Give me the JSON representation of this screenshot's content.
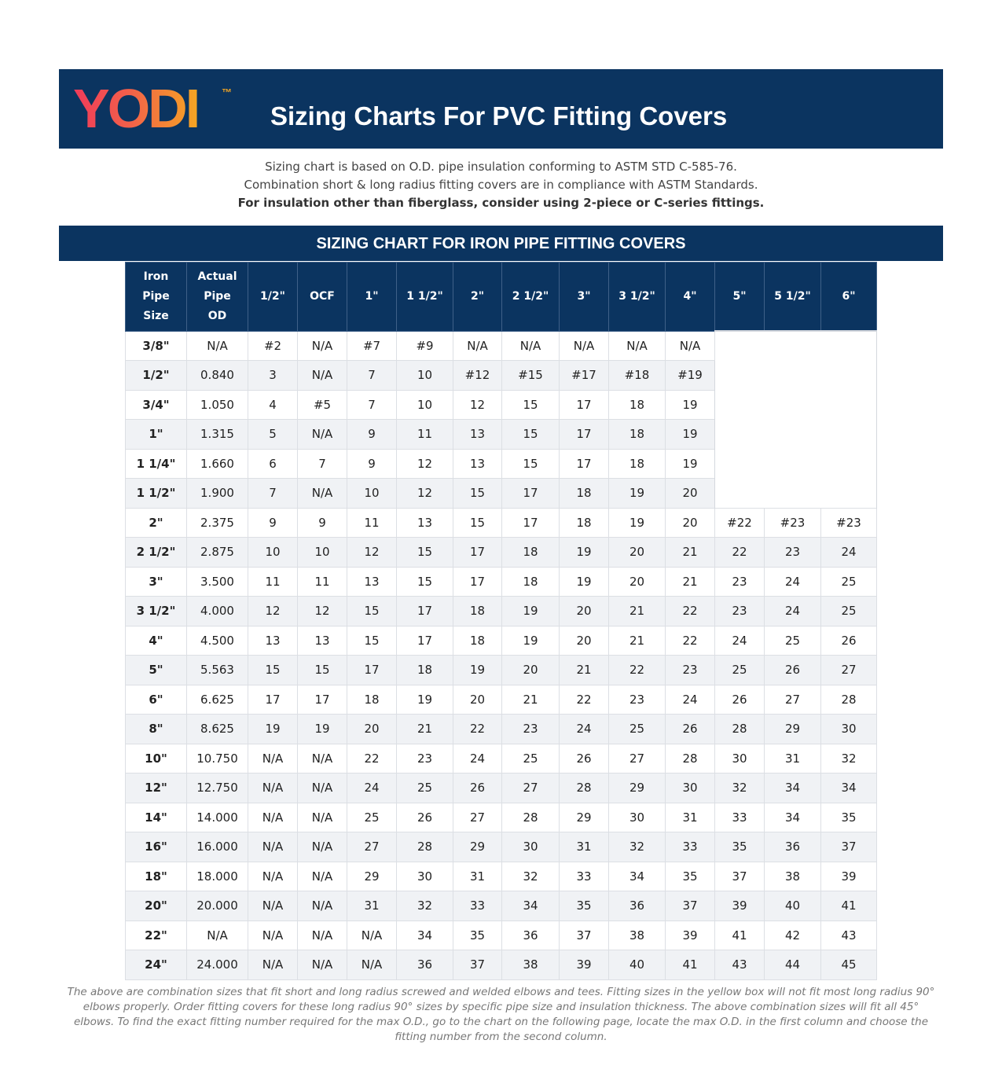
{
  "brand": {
    "logo_text": "YODI",
    "trademark": "™"
  },
  "header": {
    "title": "Sizing Charts For PVC Fitting Covers"
  },
  "intro": {
    "line1": "Sizing chart is based on O.D. pipe insulation conforming to ASTM STD C-585-76.",
    "line2": "Combination short & long radius fitting covers are in compliance with ASTM Standards.",
    "line3": "For insulation other than fiberglass, consider using 2-piece or C-series fittings."
  },
  "section": {
    "title": "SIZING CHART FOR IRON PIPE FITTING COVERS"
  },
  "table": {
    "headers": [
      [
        "Iron",
        "Pipe",
        "Size"
      ],
      [
        "Actual",
        "Pipe",
        "OD"
      ],
      [
        "1/2\""
      ],
      [
        "OCF"
      ],
      [
        "1\""
      ],
      [
        "1 1/2\""
      ],
      [
        "2\""
      ],
      [
        "2 1/2\""
      ],
      [
        "3\""
      ],
      [
        "3 1/2\""
      ],
      [
        "4\""
      ],
      [
        "5\""
      ],
      [
        "5 1/2\""
      ],
      [
        "6\""
      ]
    ],
    "rows": [
      [
        "3/8\"",
        "N/A",
        "#2",
        "N/A",
        "#7",
        "#9",
        "N/A",
        "N/A",
        "N/A",
        "N/A",
        "N/A"
      ],
      [
        "1/2\"",
        "0.840",
        "3",
        "N/A",
        "7",
        "10",
        "#12",
        "#15",
        "#17",
        "#18",
        "#19"
      ],
      [
        "3/4\"",
        "1.050",
        "4",
        "#5",
        "7",
        "10",
        "12",
        "15",
        "17",
        "18",
        "19"
      ],
      [
        "1\"",
        "1.315",
        "5",
        "N/A",
        "9",
        "11",
        "13",
        "15",
        "17",
        "18",
        "19"
      ],
      [
        "1 1/4\"",
        "1.660",
        "6",
        "7",
        "9",
        "12",
        "13",
        "15",
        "17",
        "18",
        "19"
      ],
      [
        "1 1/2\"",
        "1.900",
        "7",
        "N/A",
        "10",
        "12",
        "15",
        "17",
        "18",
        "19",
        "20"
      ],
      [
        "2\"",
        "2.375",
        "9",
        "9",
        "11",
        "13",
        "15",
        "17",
        "18",
        "19",
        "20",
        "#22",
        "#23",
        "#23"
      ],
      [
        "2 1/2\"",
        "2.875",
        "10",
        "10",
        "12",
        "15",
        "17",
        "18",
        "19",
        "20",
        "21",
        "22",
        "23",
        "24"
      ],
      [
        "3\"",
        "3.500",
        "11",
        "11",
        "13",
        "15",
        "17",
        "18",
        "19",
        "20",
        "21",
        "23",
        "24",
        "25"
      ],
      [
        "3 1/2\"",
        "4.000",
        "12",
        "12",
        "15",
        "17",
        "18",
        "19",
        "20",
        "21",
        "22",
        "23",
        "24",
        "25"
      ],
      [
        "4\"",
        "4.500",
        "13",
        "13",
        "15",
        "17",
        "18",
        "19",
        "20",
        "21",
        "22",
        "24",
        "25",
        "26"
      ],
      [
        "5\"",
        "5.563",
        "15",
        "15",
        "17",
        "18",
        "19",
        "20",
        "21",
        "22",
        "23",
        "25",
        "26",
        "27"
      ],
      [
        "6\"",
        "6.625",
        "17",
        "17",
        "18",
        "19",
        "20",
        "21",
        "22",
        "23",
        "24",
        "26",
        "27",
        "28"
      ],
      [
        "8\"",
        "8.625",
        "19",
        "19",
        "20",
        "21",
        "22",
        "23",
        "24",
        "25",
        "26",
        "28",
        "29",
        "30"
      ],
      [
        "10\"",
        "10.750",
        "N/A",
        "N/A",
        "22",
        "23",
        "24",
        "25",
        "26",
        "27",
        "28",
        "30",
        "31",
        "32"
      ],
      [
        "12\"",
        "12.750",
        "N/A",
        "N/A",
        "24",
        "25",
        "26",
        "27",
        "28",
        "29",
        "30",
        "32",
        "34",
        "34"
      ],
      [
        "14\"",
        "14.000",
        "N/A",
        "N/A",
        "25",
        "26",
        "27",
        "28",
        "29",
        "30",
        "31",
        "33",
        "34",
        "35"
      ],
      [
        "16\"",
        "16.000",
        "N/A",
        "N/A",
        "27",
        "28",
        "29",
        "30",
        "31",
        "32",
        "33",
        "35",
        "36",
        "37"
      ],
      [
        "18\"",
        "18.000",
        "N/A",
        "N/A",
        "29",
        "30",
        "31",
        "32",
        "33",
        "34",
        "35",
        "37",
        "38",
        "39"
      ],
      [
        "20\"",
        "20.000",
        "N/A",
        "N/A",
        "31",
        "32",
        "33",
        "34",
        "35",
        "36",
        "37",
        "39",
        "40",
        "41"
      ],
      [
        "22\"",
        "N/A",
        "N/A",
        "N/A",
        "N/A",
        "34",
        "35",
        "36",
        "37",
        "38",
        "39",
        "41",
        "42",
        "43"
      ],
      [
        "24\"",
        "24.000",
        "N/A",
        "N/A",
        "N/A",
        "36",
        "37",
        "38",
        "39",
        "40",
        "41",
        "43",
        "44",
        "45"
      ]
    ]
  },
  "footnote": {
    "text": "The above are combination sizes that fit short and long radius screwed and welded elbows and tees. Fitting sizes in the yellow box will not fit most long radius 90° elbows properly. Order fitting covers for these long radius 90° sizes by specific pipe size and insulation thickness. The above combination sizes will fit all 45° elbows. To find the exact fitting number required for the max O.D., go to the chart on the following page, locate the max O.D. in the first column and choose the fitting number from the second column."
  },
  "colors": {
    "navy": "#0b3460",
    "logo_start": "#ef3b5a",
    "logo_end": "#f5a623"
  }
}
